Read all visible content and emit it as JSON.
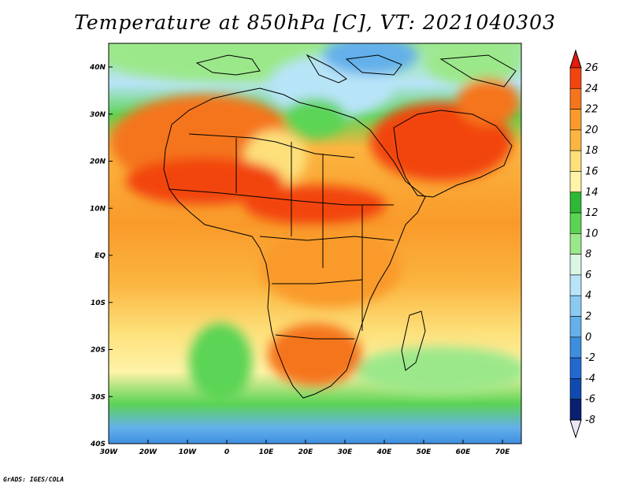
{
  "title": "Temperature at 850hPa [C], VT: 2021040303",
  "footer": "GrADS: IGES/COLA",
  "lon_ticks": [
    "30W",
    "20W",
    "10W",
    "0",
    "10E",
    "20E",
    "30E",
    "40E",
    "50E",
    "60E",
    "70E"
  ],
  "lat_ticks": [
    "40N",
    "30N",
    "20N",
    "10N",
    "EQ",
    "10S",
    "20S",
    "30S",
    "40S"
  ],
  "colorbar": {
    "labels": [
      "26",
      "24",
      "22",
      "20",
      "18",
      "16",
      "14",
      "12",
      "10",
      "8",
      "6",
      "4",
      "2",
      "0",
      "-2",
      "-4",
      "-6",
      "-8"
    ],
    "colors": [
      "#e31a0c",
      "#f2450f",
      "#f5751c",
      "#f99a2a",
      "#fbb540",
      "#fde07a",
      "#fff3a8",
      "#2fb835",
      "#5bd454",
      "#9be88a",
      "#d9f7e3",
      "#b8e4f8",
      "#8ccbf1",
      "#64b0ea",
      "#3e8ee0",
      "#2269cf",
      "#0f4aae",
      "#0a1f6e"
    ]
  },
  "colors": {
    "frame": "#000000",
    "coast": "#000000"
  }
}
